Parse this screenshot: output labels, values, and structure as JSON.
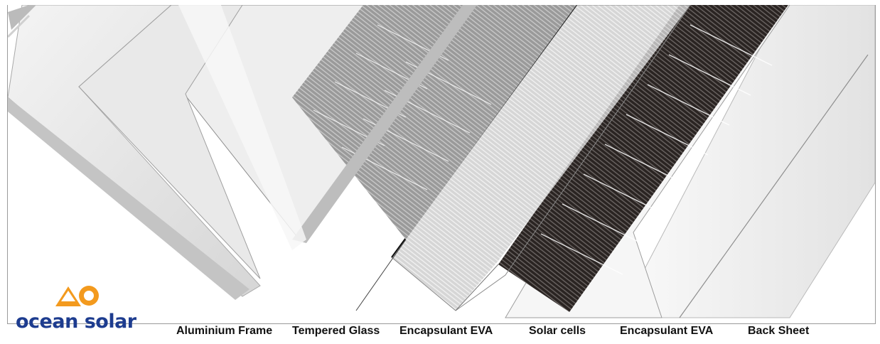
{
  "brand": {
    "name": "ocean solar",
    "logo_icon": "ocean-solar-logo",
    "logo_color": "#f39a1e",
    "text_color": "#1d3c8f"
  },
  "layers": [
    {
      "label": "Aluminium Frame"
    },
    {
      "label": "Tempered Glass"
    },
    {
      "label": "Encapsulant EVA"
    },
    {
      "label": "Solar cells"
    },
    {
      "label": "Encapsulant EVA"
    },
    {
      "label": "Back Sheet"
    }
  ]
}
